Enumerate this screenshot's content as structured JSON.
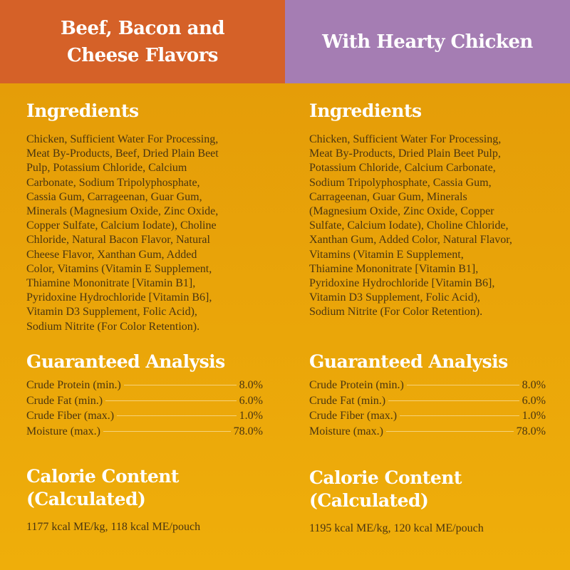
{
  "columns": [
    {
      "title": "Beef, Bacon and Cheese Flavors",
      "header_color": "#D56128",
      "ingredients_heading": "Ingredients",
      "ingredients_lines": [
        "Chicken, Sufficient Water For Processing,",
        "Meat By-Products, Beef, Dried Plain Beet",
        "Pulp, Potassium Chloride, Calcium",
        "Carbonate, Sodium Tripolyphosphate,",
        "Cassia Gum, Carrageenan, Guar Gum,",
        "Minerals (Magnesium Oxide, Zinc Oxide,",
        "Copper Sulfate, Calcium Iodate), Choline",
        "Chloride, Natural Bacon Flavor, Natural",
        "Cheese Flavor, Xanthan Gum, Added",
        "Color, Vitamins (Vitamin E Supplement,",
        "Thiamine Mononitrate [Vitamin B1],",
        "Pyridoxine Hydrochloride [Vitamin B6],",
        "Vitamin D3 Supplement, Folic Acid),",
        "Sodium Nitrite (For Color Retention)."
      ],
      "analysis_heading": "Guaranteed Analysis",
      "analysis": [
        {
          "label": "Crude Protein (min.)",
          "value": "8.0%"
        },
        {
          "label": "Crude Fat (min.)",
          "value": "6.0%"
        },
        {
          "label": "Crude Fiber (max.)",
          "value": "1.0%"
        },
        {
          "label": "Moisture (max.)",
          "value": "78.0%"
        }
      ],
      "calorie_heading_1": "Calorie Content",
      "calorie_heading_2": "(Calculated)",
      "calorie_text": "1177 kcal ME/kg, 118 kcal ME/pouch"
    },
    {
      "title": "With Hearty Chicken",
      "header_color": "#A57DB3",
      "ingredients_heading": "Ingredients",
      "ingredients_lines": [
        "Chicken, Sufficient Water For Processing,",
        "Meat By-Products, Dried Plain Beet Pulp,",
        "Potassium Chloride, Calcium Carbonate,",
        "Sodium Tripolyphosphate, Cassia Gum,",
        "Carrageenan, Guar Gum, Minerals",
        "(Magnesium Oxide, Zinc Oxide, Copper",
        "Sulfate, Calcium Iodate), Choline Chloride,",
        "Xanthan Gum, Added Color, Natural Flavor,",
        "Vitamins (Vitamin E Supplement,",
        "Thiamine Mononitrate [Vitamin B1],",
        "Pyridoxine Hydrochloride [Vitamin B6],",
        "Vitamin D3 Supplement, Folic Acid),",
        "Sodium Nitrite (For Color Retention)."
      ],
      "analysis_heading": "Guaranteed Analysis",
      "analysis": [
        {
          "label": "Crude Protein (min.)",
          "value": "8.0%"
        },
        {
          "label": "Crude Fat (min.)",
          "value": "6.0%"
        },
        {
          "label": "Crude Fiber (max.)",
          "value": "1.0%"
        },
        {
          "label": "Moisture (max.)",
          "value": "78.0%"
        }
      ],
      "calorie_heading_1": "Calorie Content",
      "calorie_heading_2": "(Calculated)",
      "calorie_text": "1195 kcal ME/kg, 120 kcal ME/pouch"
    }
  ]
}
